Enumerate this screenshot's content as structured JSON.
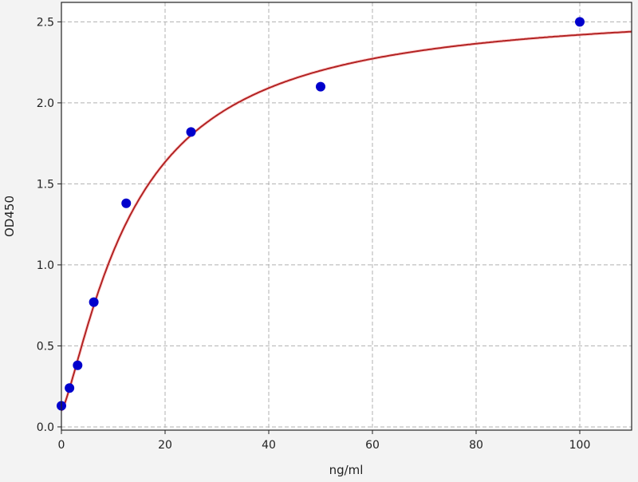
{
  "chart_data": {
    "type": "scatter",
    "title": "",
    "xlabel": "ng/ml",
    "ylabel": "OD450",
    "xlim": [
      0,
      110
    ],
    "ylim": [
      -0.02,
      2.62
    ],
    "xticks": [
      0,
      20,
      40,
      60,
      80,
      100
    ],
    "xtick_labels": [
      "0",
      "20",
      "40",
      "60",
      "80",
      "100"
    ],
    "yticks": [
      0.0,
      0.5,
      1.0,
      1.5,
      2.0,
      2.5
    ],
    "ytick_labels": [
      "0.0",
      "0.5",
      "1.0",
      "1.5",
      "2.0",
      "2.5"
    ],
    "grid": true,
    "series": [
      {
        "kind": "points",
        "color": "#0000cc",
        "x": [
          0,
          1.56,
          3.125,
          6.25,
          12.5,
          25,
          50,
          100
        ],
        "y": [
          0.13,
          0.24,
          0.38,
          0.77,
          1.38,
          1.82,
          2.1,
          2.5
        ]
      },
      {
        "kind": "fitted-curve",
        "color": "#b22222"
      }
    ]
  }
}
